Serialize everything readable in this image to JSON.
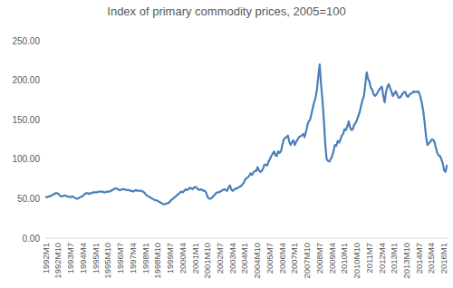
{
  "chart_data": {
    "type": "line",
    "title": "Index of primary commodity prices, 2005=100",
    "categories": [
      "1992M1",
      null,
      null,
      null,
      null,
      null,
      null,
      null,
      null,
      "1992M10",
      null,
      null,
      null,
      null,
      null,
      null,
      null,
      null,
      "1993M7",
      null,
      null,
      null,
      null,
      null,
      null,
      null,
      null,
      "1994M4",
      null,
      null,
      null,
      null,
      null,
      null,
      null,
      null,
      "1995M1",
      null,
      null,
      null,
      null,
      null,
      null,
      null,
      null,
      "1995M10",
      null,
      null,
      null,
      null,
      null,
      null,
      null,
      null,
      "1996M7",
      null,
      null,
      null,
      null,
      null,
      null,
      null,
      null,
      "1997M4",
      null,
      null,
      null,
      null,
      null,
      null,
      null,
      null,
      "1998M1",
      null,
      null,
      null,
      null,
      null,
      null,
      null,
      null,
      "1998M10",
      null,
      null,
      null,
      null,
      null,
      null,
      null,
      null,
      "1999M7",
      null,
      null,
      null,
      null,
      null,
      null,
      null,
      null,
      "2000M4",
      null,
      null,
      null,
      null,
      null,
      null,
      null,
      null,
      "2001M1",
      null,
      null,
      null,
      null,
      null,
      null,
      null,
      null,
      "2001M10",
      null,
      null,
      null,
      null,
      null,
      null,
      null,
      null,
      "2002M7",
      null,
      null,
      null,
      null,
      null,
      null,
      null,
      null,
      "2003M4",
      null,
      null,
      null,
      null,
      null,
      null,
      null,
      null,
      "2004M1",
      null,
      null,
      null,
      null,
      null,
      null,
      null,
      null,
      "2004M10",
      null,
      null,
      null,
      null,
      null,
      null,
      null,
      null,
      "2005M7",
      null,
      null,
      null,
      null,
      null,
      null,
      null,
      null,
      "2006M4",
      null,
      null,
      null,
      null,
      null,
      null,
      null,
      null,
      "2007M1",
      null,
      null,
      null,
      null,
      null,
      null,
      null,
      null,
      "2007M10",
      null,
      null,
      null,
      null,
      null,
      null,
      null,
      null,
      "2008M7",
      null,
      null,
      null,
      null,
      null,
      null,
      null,
      null,
      "2009M4",
      null,
      null,
      null,
      null,
      null,
      null,
      null,
      null,
      "2010M1",
      null,
      null,
      null,
      null,
      null,
      null,
      null,
      null,
      "2010M10",
      null,
      null,
      null,
      null,
      null,
      null,
      null,
      null,
      "2011M7",
      null,
      null,
      null,
      null,
      null,
      null,
      null,
      null,
      "2012M4",
      null,
      null,
      null,
      null,
      null,
      null,
      null,
      null,
      "2013M1",
      null,
      null,
      null,
      null,
      null,
      null,
      null,
      null,
      "2013M10",
      null,
      null,
      null,
      null,
      null,
      null,
      null,
      null,
      "2014M7",
      null,
      null,
      null,
      null,
      null,
      null,
      null,
      null,
      "2015M4",
      null,
      null,
      null,
      null,
      null,
      null,
      null,
      null,
      "2016M1",
      null,
      null
    ],
    "values": [
      52,
      52,
      53,
      53,
      54,
      55,
      56,
      57,
      57,
      56,
      54,
      53,
      53,
      54,
      54,
      53,
      53,
      52,
      52,
      53,
      52,
      51,
      50,
      50,
      51,
      52,
      53,
      54,
      56,
      57,
      57,
      56,
      57,
      57,
      58,
      58,
      58,
      58,
      59,
      59,
      59,
      59,
      58,
      58,
      59,
      59,
      59,
      60,
      61,
      62,
      63,
      63,
      62,
      61,
      61,
      62,
      62,
      62,
      61,
      61,
      61,
      60,
      60,
      59,
      60,
      61,
      60,
      60,
      60,
      60,
      59,
      58,
      56,
      54,
      53,
      52,
      51,
      50,
      49,
      48,
      48,
      47,
      46,
      45,
      44,
      43,
      43,
      44,
      44,
      45,
      47,
      49,
      50,
      52,
      53,
      55,
      56,
      58,
      59,
      58,
      60,
      62,
      61,
      62,
      64,
      63,
      62,
      64,
      65,
      64,
      62,
      61,
      62,
      61,
      60,
      60,
      57,
      52,
      50,
      50,
      51,
      53,
      55,
      57,
      58,
      58,
      59,
      60,
      61,
      62,
      61,
      60,
      64,
      67,
      62,
      60,
      61,
      63,
      63,
      64,
      65,
      66,
      68,
      70,
      74,
      76,
      77,
      79,
      82,
      80,
      83,
      85,
      85,
      90,
      86,
      84,
      85,
      88,
      93,
      93,
      92,
      97,
      100,
      104,
      107,
      110,
      105,
      104,
      110,
      108,
      110,
      118,
      125,
      127,
      128,
      130,
      122,
      118,
      122,
      124,
      118,
      122,
      125,
      128,
      129,
      130,
      132,
      128,
      134,
      142,
      148,
      150,
      157,
      165,
      172,
      178,
      188,
      205,
      220,
      195,
      175,
      150,
      120,
      100,
      98,
      97,
      100,
      104,
      110,
      118,
      117,
      123,
      121,
      125,
      130,
      132,
      138,
      137,
      142,
      148,
      140,
      137,
      138,
      144,
      146,
      150,
      155,
      160,
      168,
      175,
      180,
      195,
      210,
      202,
      198,
      190,
      188,
      182,
      180,
      182,
      185,
      188,
      190,
      192,
      180,
      172,
      185,
      192,
      195,
      190,
      185,
      180,
      183,
      186,
      182,
      178,
      178,
      180,
      183,
      185,
      185,
      180,
      179,
      182,
      183,
      184,
      186,
      185,
      185,
      186,
      184,
      178,
      170,
      160,
      145,
      128,
      118,
      120,
      122,
      125,
      125,
      122,
      115,
      108,
      105,
      104,
      100,
      95,
      86,
      84,
      92
    ],
    "color": "#4a7ebb",
    "ylim": [
      0,
      250
    ],
    "yticks": [
      {
        "value": 0,
        "label": "0.00"
      },
      {
        "value": 50,
        "label": "50.00"
      },
      {
        "value": 100,
        "label": "100.00"
      },
      {
        "value": 150,
        "label": "150.00"
      },
      {
        "value": 200,
        "label": "200.00"
      },
      {
        "value": 250,
        "label": "250.00"
      }
    ],
    "grid": false
  }
}
